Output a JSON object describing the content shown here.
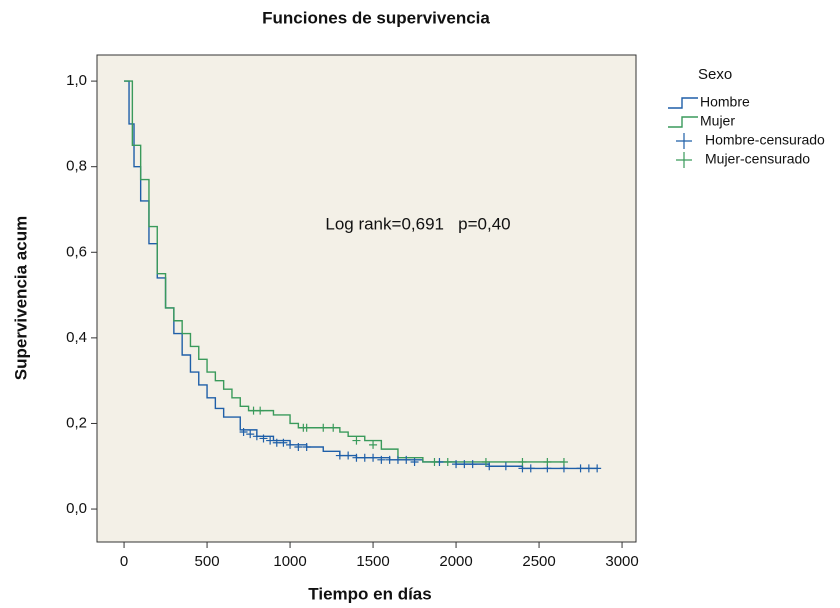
{
  "chart_data": {
    "type": "step",
    "title": "Funciones de supervivencia",
    "x_label": "Tiempo en días",
    "y_label": "Supervivencia acum",
    "annotation": "Log rank=0,691   p=0,40",
    "legend_title": "Sexo",
    "legend_position": "right",
    "xlim": [
      -163,
      3084
    ],
    "ylim": [
      -0.077,
      1.061
    ],
    "xticks": [
      0,
      500,
      1000,
      1500,
      2000,
      2500,
      3000
    ],
    "yticks": [
      {
        "value": 0,
        "label": "0,0"
      },
      {
        "value": 0.2,
        "label": "0,2"
      },
      {
        "value": 0.4,
        "label": "0,4"
      },
      {
        "value": 0.6,
        "label": "0,6"
      },
      {
        "value": 0.8,
        "label": "0,8"
      },
      {
        "value": 1,
        "label": "1,0"
      }
    ],
    "series": [
      {
        "name": "Hombre",
        "color": "#1f5fa8",
        "style": "step",
        "x": [
          0,
          30,
          60,
          100,
          150,
          200,
          250,
          300,
          350,
          400,
          450,
          500,
          550,
          600,
          700,
          800,
          900,
          1000,
          1100,
          1200,
          1300,
          1400,
          1600,
          1800,
          2000,
          2200,
          2400,
          2850
        ],
        "values": [
          1.0,
          0.9,
          0.8,
          0.72,
          0.62,
          0.54,
          0.47,
          0.41,
          0.36,
          0.32,
          0.29,
          0.26,
          0.235,
          0.215,
          0.185,
          0.17,
          0.16,
          0.15,
          0.145,
          0.135,
          0.125,
          0.12,
          0.115,
          0.11,
          0.105,
          0.1,
          0.095,
          0.095
        ]
      },
      {
        "name": "Mujer",
        "color": "#3a9a5b",
        "style": "step",
        "x": [
          0,
          50,
          100,
          150,
          200,
          250,
          300,
          350,
          400,
          450,
          500,
          550,
          600,
          650,
          700,
          750,
          900,
          1000,
          1050,
          1300,
          1350,
          1450,
          1550,
          1650,
          1800,
          2650
        ],
        "values": [
          1.0,
          0.85,
          0.77,
          0.66,
          0.55,
          0.47,
          0.44,
          0.41,
          0.38,
          0.35,
          0.32,
          0.3,
          0.28,
          0.26,
          0.24,
          0.23,
          0.22,
          0.2,
          0.19,
          0.18,
          0.17,
          0.16,
          0.14,
          0.12,
          0.11,
          0.11
        ]
      },
      {
        "name": "Hombre-censurado",
        "color": "#1f5fa8",
        "style": "censored",
        "x": [
          720,
          760,
          800,
          840,
          880,
          920,
          960,
          1000,
          1050,
          1100,
          1300,
          1350,
          1400,
          1450,
          1500,
          1550,
          1600,
          1650,
          1700,
          1750,
          1900,
          2000,
          2050,
          2100,
          2200,
          2300,
          2400,
          2450,
          2550,
          2650,
          2750,
          2800,
          2850
        ],
        "values": [
          0.18,
          0.175,
          0.17,
          0.165,
          0.16,
          0.155,
          0.155,
          0.15,
          0.145,
          0.145,
          0.125,
          0.125,
          0.12,
          0.12,
          0.12,
          0.115,
          0.115,
          0.115,
          0.115,
          0.11,
          0.11,
          0.105,
          0.105,
          0.105,
          0.1,
          0.1,
          0.095,
          0.095,
          0.095,
          0.095,
          0.095,
          0.095,
          0.095
        ]
      },
      {
        "name": "Mujer-censurado",
        "color": "#3a9a5b",
        "style": "censored",
        "x": [
          780,
          820,
          1080,
          1100,
          1200,
          1260,
          1400,
          1500,
          1870,
          1950,
          2180,
          2400,
          2550,
          2650
        ],
        "values": [
          0.23,
          0.23,
          0.19,
          0.19,
          0.19,
          0.19,
          0.16,
          0.15,
          0.11,
          0.11,
          0.11,
          0.11,
          0.11,
          0.11
        ]
      }
    ]
  }
}
